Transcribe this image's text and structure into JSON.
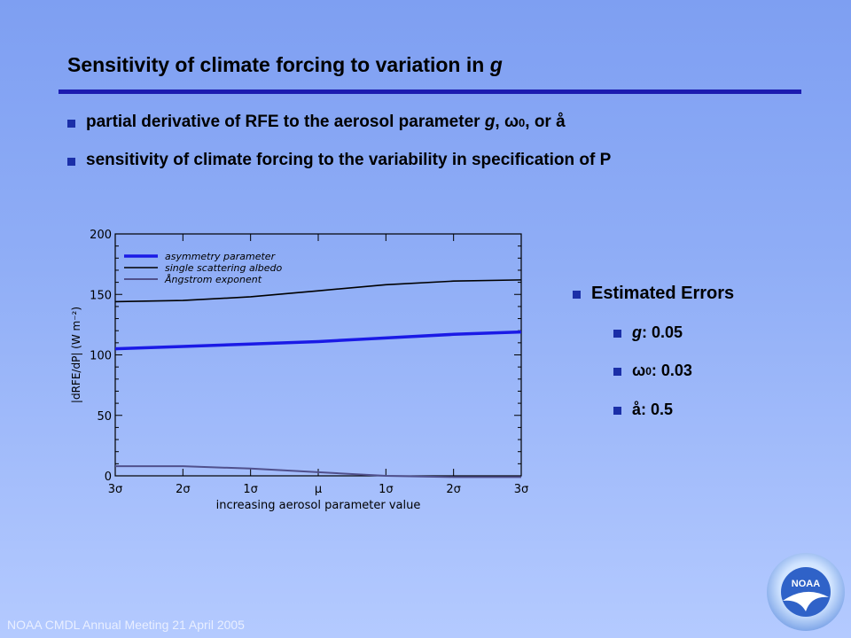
{
  "slide": {
    "title_prefix": "Sensitivity of climate forcing to variation in ",
    "title_var": "g",
    "bullets": [
      {
        "pre": "partial derivative of RFE to the aerosol parameter ",
        "var": "g",
        "mid": ", ω",
        "sub": "0",
        "post": ", or å"
      },
      {
        "text": "sensitivity of climate forcing to the variability in specification of P"
      }
    ],
    "errors": {
      "heading": "Estimated Errors",
      "items": [
        {
          "label": "g",
          "value": ": 0.05"
        },
        {
          "label": "ω",
          "sub": "0",
          "value": ": 0.03"
        },
        {
          "label": "å",
          "value": ": 0.5"
        }
      ]
    },
    "footer": "NOAA CMDL Annual Meeting 21 April 2005",
    "logo_text": "NOAA"
  },
  "colors": {
    "accent": "#1c1cb0",
    "bullet": "#1b2fa8",
    "asymmetry": "#1a1ae6",
    "albedo": "#000000",
    "angstrom": "#50508c"
  },
  "chart_data": {
    "type": "line",
    "xlabel": "increasing aerosol parameter value",
    "ylabel": "|dRFE/dP| (W m⁻²)",
    "categories": [
      "3σ",
      "2σ",
      "1σ",
      "μ",
      "1σ",
      "2σ",
      "3σ"
    ],
    "ylim": [
      0,
      200
    ],
    "yticks": [
      0,
      50,
      100,
      150,
      200
    ],
    "grid": false,
    "legend_position": "top-left",
    "series": [
      {
        "name": "asymmetry parameter",
        "color": "#1a1ae6",
        "width": 3.5,
        "values": [
          105,
          107,
          109,
          111,
          114,
          117,
          119
        ]
      },
      {
        "name": "single scattering albedo",
        "color": "#000000",
        "width": 1.6,
        "values": [
          144,
          145,
          148,
          153,
          158,
          161,
          162
        ]
      },
      {
        "name": "Ångstrom exponent",
        "color": "#50508c",
        "width": 2,
        "values": [
          8,
          8,
          6,
          3,
          0,
          -1,
          -1
        ]
      }
    ]
  }
}
